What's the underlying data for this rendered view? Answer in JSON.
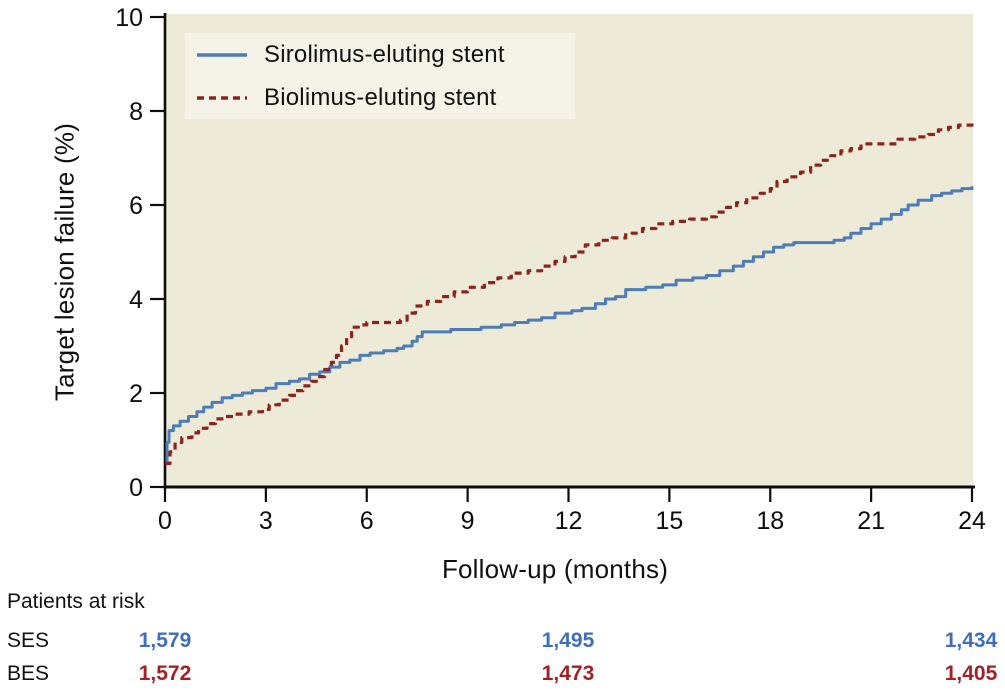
{
  "chart_data": {
    "type": "line",
    "subtype": "kaplan-meier-step",
    "xlabel": "Follow-up (months)",
    "ylabel": "Target lesion failure (%)",
    "xlim": [
      0,
      24
    ],
    "ylim": [
      0,
      10
    ],
    "x_ticks": [
      0,
      3,
      6,
      9,
      12,
      15,
      18,
      21,
      24
    ],
    "y_ticks": [
      0,
      2,
      4,
      6,
      8,
      10
    ],
    "grid": false,
    "legend_position": "top-left-inside",
    "series": [
      {
        "name": "Sirolimus-eluting stent",
        "abbr": "SES",
        "color": "#4d7cb8",
        "line_style": "solid",
        "points": [
          [
            0,
            0.5
          ],
          [
            0.06,
            0.95
          ],
          [
            0.12,
            1.2
          ],
          [
            0.25,
            1.3
          ],
          [
            0.45,
            1.4
          ],
          [
            0.7,
            1.5
          ],
          [
            0.95,
            1.6
          ],
          [
            1.15,
            1.7
          ],
          [
            1.4,
            1.8
          ],
          [
            1.7,
            1.9
          ],
          [
            2.0,
            1.95
          ],
          [
            2.3,
            2.0
          ],
          [
            2.6,
            2.05
          ],
          [
            3.0,
            2.1
          ],
          [
            3.3,
            2.2
          ],
          [
            3.7,
            2.25
          ],
          [
            4.0,
            2.3
          ],
          [
            4.3,
            2.4
          ],
          [
            4.6,
            2.45
          ],
          [
            4.9,
            2.55
          ],
          [
            5.2,
            2.65
          ],
          [
            5.5,
            2.7
          ],
          [
            5.8,
            2.8
          ],
          [
            6.1,
            2.85
          ],
          [
            6.5,
            2.9
          ],
          [
            6.9,
            2.95
          ],
          [
            7.1,
            3.0
          ],
          [
            7.35,
            3.1
          ],
          [
            7.5,
            3.2
          ],
          [
            7.65,
            3.3
          ],
          [
            8.5,
            3.35
          ],
          [
            9.4,
            3.4
          ],
          [
            10.0,
            3.45
          ],
          [
            10.4,
            3.5
          ],
          [
            10.8,
            3.55
          ],
          [
            11.2,
            3.6
          ],
          [
            11.6,
            3.7
          ],
          [
            12.1,
            3.75
          ],
          [
            12.4,
            3.8
          ],
          [
            12.8,
            3.9
          ],
          [
            13.1,
            4.0
          ],
          [
            13.4,
            4.05
          ],
          [
            13.7,
            4.2
          ],
          [
            14.3,
            4.25
          ],
          [
            14.8,
            4.3
          ],
          [
            15.2,
            4.4
          ],
          [
            15.7,
            4.45
          ],
          [
            16.1,
            4.5
          ],
          [
            16.5,
            4.6
          ],
          [
            16.9,
            4.7
          ],
          [
            17.2,
            4.8
          ],
          [
            17.5,
            4.9
          ],
          [
            17.8,
            5.0
          ],
          [
            18.1,
            5.1
          ],
          [
            18.4,
            5.15
          ],
          [
            18.7,
            5.2
          ],
          [
            19.9,
            5.25
          ],
          [
            20.2,
            5.3
          ],
          [
            20.4,
            5.4
          ],
          [
            20.7,
            5.5
          ],
          [
            21.0,
            5.6
          ],
          [
            21.3,
            5.7
          ],
          [
            21.6,
            5.8
          ],
          [
            21.9,
            5.9
          ],
          [
            22.1,
            6.0
          ],
          [
            22.4,
            6.1
          ],
          [
            22.8,
            6.2
          ],
          [
            23.1,
            6.25
          ],
          [
            23.4,
            6.3
          ],
          [
            23.7,
            6.35
          ],
          [
            24,
            6.4
          ]
        ]
      },
      {
        "name": "Biolimus-eluting stent",
        "abbr": "BES",
        "color": "#8c241e",
        "line_style": "dashed",
        "points": [
          [
            0,
            0.5
          ],
          [
            0.15,
            0.75
          ],
          [
            0.3,
            0.95
          ],
          [
            0.5,
            1.05
          ],
          [
            0.8,
            1.15
          ],
          [
            1.0,
            1.25
          ],
          [
            1.25,
            1.35
          ],
          [
            1.5,
            1.45
          ],
          [
            1.8,
            1.5
          ],
          [
            2.1,
            1.55
          ],
          [
            2.5,
            1.6
          ],
          [
            2.9,
            1.65
          ],
          [
            3.1,
            1.75
          ],
          [
            3.4,
            1.85
          ],
          [
            3.7,
            1.95
          ],
          [
            3.9,
            2.05
          ],
          [
            4.1,
            2.15
          ],
          [
            4.35,
            2.25
          ],
          [
            4.55,
            2.35
          ],
          [
            4.75,
            2.5
          ],
          [
            4.95,
            2.65
          ],
          [
            5.1,
            2.8
          ],
          [
            5.25,
            3.0
          ],
          [
            5.4,
            3.2
          ],
          [
            5.55,
            3.4
          ],
          [
            5.75,
            3.45
          ],
          [
            6.0,
            3.5
          ],
          [
            7.0,
            3.55
          ],
          [
            7.2,
            3.7
          ],
          [
            7.45,
            3.85
          ],
          [
            7.8,
            3.95
          ],
          [
            8.2,
            4.05
          ],
          [
            8.6,
            4.15
          ],
          [
            9.0,
            4.25
          ],
          [
            9.5,
            4.35
          ],
          [
            9.9,
            4.45
          ],
          [
            10.3,
            4.55
          ],
          [
            10.8,
            4.6
          ],
          [
            11.2,
            4.7
          ],
          [
            11.6,
            4.8
          ],
          [
            11.9,
            4.9
          ],
          [
            12.2,
            5.0
          ],
          [
            12.5,
            5.15
          ],
          [
            12.9,
            5.25
          ],
          [
            13.3,
            5.3
          ],
          [
            13.7,
            5.4
          ],
          [
            14.2,
            5.5
          ],
          [
            14.6,
            5.6
          ],
          [
            15.1,
            5.65
          ],
          [
            15.6,
            5.7
          ],
          [
            16.1,
            5.75
          ],
          [
            16.4,
            5.85
          ],
          [
            16.7,
            5.95
          ],
          [
            17.0,
            6.05
          ],
          [
            17.3,
            6.15
          ],
          [
            17.7,
            6.25
          ],
          [
            18.0,
            6.35
          ],
          [
            18.2,
            6.5
          ],
          [
            18.5,
            6.6
          ],
          [
            18.9,
            6.7
          ],
          [
            19.2,
            6.85
          ],
          [
            19.5,
            6.95
          ],
          [
            19.8,
            7.05
          ],
          [
            20.1,
            7.15
          ],
          [
            20.4,
            7.2
          ],
          [
            20.7,
            7.3
          ],
          [
            21.8,
            7.4
          ],
          [
            22.3,
            7.45
          ],
          [
            22.7,
            7.5
          ],
          [
            23.0,
            7.6
          ],
          [
            23.3,
            7.65
          ],
          [
            23.6,
            7.7
          ],
          [
            24,
            7.8
          ]
        ]
      }
    ]
  },
  "legend": {
    "items": [
      {
        "label": "Sirolimus-eluting stent",
        "style": "solid",
        "color": "#4d7cb8"
      },
      {
        "label": "Biolimus-eluting stent",
        "style": "dashed",
        "color": "#8c241e"
      }
    ]
  },
  "patients_at_risk": {
    "heading": "Patients at risk",
    "time_points": [
      0,
      12,
      24
    ],
    "rows": [
      {
        "label": "SES",
        "color": "#3f6fb5",
        "counts": [
          "1,579",
          "1,495",
          "1,434"
        ]
      },
      {
        "label": "BES",
        "color": "#a32125",
        "counts": [
          "1,572",
          "1,473",
          "1,405"
        ]
      }
    ]
  },
  "colors": {
    "plot_background": "#edead8",
    "legend_background": "#f5f3e7",
    "axis": "#0d0d0d",
    "ses_line": "#4d7cb8",
    "bes_line": "#8c241e"
  }
}
